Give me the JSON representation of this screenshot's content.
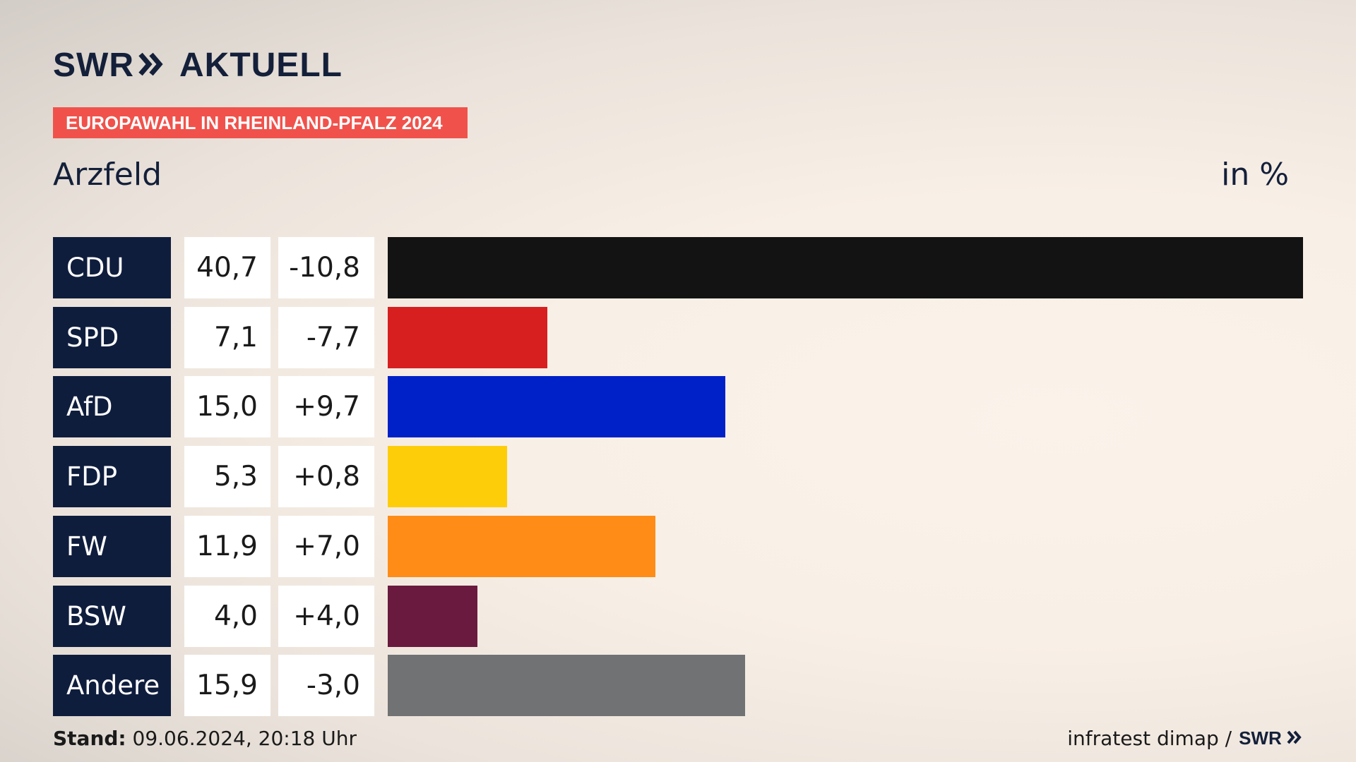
{
  "header": {
    "logo_text": "SWR",
    "logo_suffix": "AKTUELL",
    "banner": "EUROPAWAHL IN RHEINLAND-PFALZ 2024",
    "location": "Arzfeld",
    "unit": "in %"
  },
  "chart_data": {
    "type": "bar",
    "orientation": "horizontal",
    "categories": [
      "CDU",
      "SPD",
      "AfD",
      "FDP",
      "FW",
      "BSW",
      "Andere"
    ],
    "values": [
      40.7,
      7.1,
      15.0,
      5.3,
      11.9,
      4.0,
      15.9
    ],
    "value_labels": [
      "40,7",
      "7,1",
      "15,0",
      "5,3",
      "11,9",
      "4,0",
      "15,9"
    ],
    "diffs": [
      -10.8,
      -7.7,
      9.7,
      0.8,
      7.0,
      4.0,
      -3.0
    ],
    "diff_labels": [
      "-10,8",
      "-7,7",
      "+9,7",
      "+0,8",
      "+7,0",
      "+4,0",
      "-3,0"
    ],
    "colors": [
      "#131313",
      "#d71f1f",
      "#0021c7",
      "#fecd0a",
      "#ff8c17",
      "#6a1a3e",
      "#717274"
    ],
    "xlim": [
      0,
      40.7
    ],
    "grid": false,
    "legend": "none"
  },
  "footer": {
    "stand_label": "Stand:",
    "stand_value": "09.06.2024, 20:18 Uhr",
    "source": "infratest dimap /",
    "source_logo": "SWR"
  }
}
